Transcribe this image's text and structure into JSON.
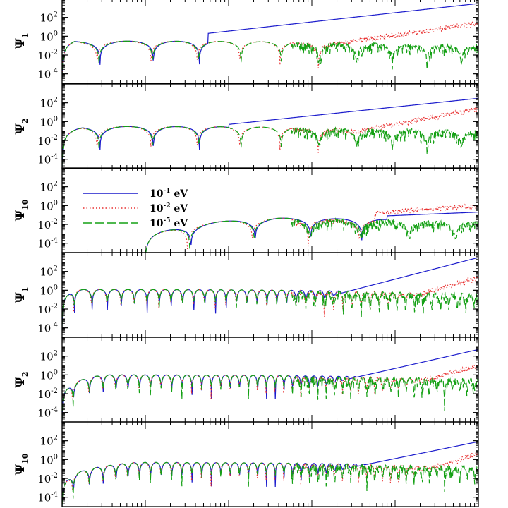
{
  "chart_data": {
    "type": "line",
    "yscale": "log",
    "ylim": [
      1e-05,
      10000
    ],
    "y_ticks": [
      {
        "value": 100,
        "base": "10",
        "exp": "2"
      },
      {
        "value": 1,
        "base": "10",
        "exp": "0"
      },
      {
        "value": 0.01,
        "base": "10",
        "exp": "-2"
      },
      {
        "value": 0.0001,
        "base": "10",
        "exp": "-4"
      }
    ],
    "grid": false,
    "x_tick_labels": "none",
    "legend": {
      "placement": "panel-3 upper-left",
      "entries": [
        {
          "base": "10",
          "exp": "-1",
          "unit": " eV",
          "color": "#1a1acc",
          "style": "solid"
        },
        {
          "base": "10",
          "exp": "-2",
          "unit": " eV",
          "color": "#e83030",
          "style": "dotted"
        },
        {
          "base": "10",
          "exp": "-5",
          "unit": " eV",
          "color": "#14a014",
          "style": "dashed"
        }
      ]
    },
    "panels": [
      {
        "ylabel": "Ψ",
        "ysub": "1",
        "x_range": [
          0,
          1
        ],
        "peak": 0.3,
        "rise": 0.03,
        "n_osc": 10,
        "curve_start": 0,
        "tail": [
          [
            0.35,
            2
          ],
          [
            1.0,
            3000
          ]
        ],
        "mid": [
          [
            0.65,
            0.3
          ],
          [
            1.0,
            50
          ]
        ],
        "noise_floor": 0.001
      },
      {
        "ylabel": "Ψ",
        "ysub": "2",
        "x_range": [
          0,
          1
        ],
        "peak": 0.3,
        "rise": 0.05,
        "n_osc": 10,
        "curve_start": 0,
        "tail": [
          [
            0.4,
            0.5
          ],
          [
            1.0,
            300
          ]
        ],
        "mid": [
          [
            0.65,
            0.06
          ],
          [
            1.0,
            50
          ]
        ],
        "noise_floor": 0.001
      },
      {
        "ylabel": "Ψ",
        "ysub": "10",
        "x_range": [
          0,
          1
        ],
        "peak": 0.05,
        "rise": 0.4,
        "n_osc": 6,
        "curve_start": 0.2,
        "tail": [
          [
            0.78,
            0.08
          ],
          [
            1.0,
            0.2
          ]
        ],
        "mid": [
          [
            0.75,
            0.3
          ],
          [
            1.0,
            2
          ]
        ],
        "noise_floor": 0.001
      },
      {
        "ylabel": "Ψ",
        "ysub": "1",
        "x_range": [
          0,
          1
        ],
        "peak": 1.2,
        "rise": 0.03,
        "n_osc": 40,
        "curve_start": 0,
        "tail": [
          [
            0.55,
            0.02
          ],
          [
            1.0,
            3000
          ]
        ],
        "mid": [
          [
            0.72,
            0.01
          ],
          [
            1.0,
            50
          ]
        ],
        "noise_floor": 0.001
      },
      {
        "ylabel": "Ψ",
        "ysub": "2",
        "x_range": [
          0,
          1
        ],
        "peak": 1.0,
        "rise": 0.1,
        "n_osc": 45,
        "curve_start": 0,
        "tail": [
          [
            0.55,
            0.015
          ],
          [
            1.0,
            500
          ]
        ],
        "mid": [
          [
            0.72,
            0.008
          ],
          [
            1.0,
            20
          ]
        ],
        "noise_floor": 0.0005
      },
      {
        "ylabel": "Ψ",
        "ysub": "10",
        "x_range": [
          0,
          1
        ],
        "peak": 0.5,
        "rise": 0.18,
        "n_osc": 45,
        "curve_start": 0,
        "tail": [
          [
            0.6,
            0.02
          ],
          [
            1.0,
            80
          ]
        ],
        "mid": [
          [
            0.78,
            0.005
          ],
          [
            1.0,
            10
          ]
        ],
        "noise_floor": 0.0003
      }
    ]
  }
}
